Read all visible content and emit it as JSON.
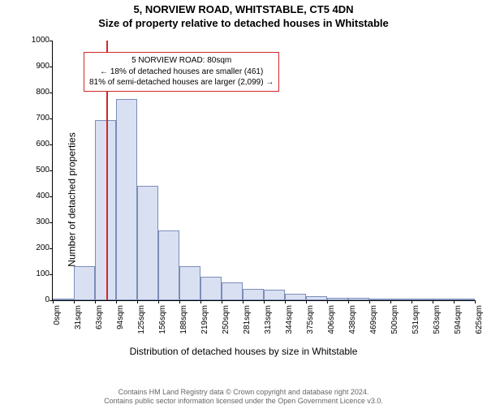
{
  "title_line1": "5, NORVIEW ROAD, WHITSTABLE, CT5 4DN",
  "title_line2": "Size of property relative to detached houses in Whitstable",
  "y_label": "Number of detached properties",
  "x_label": "Distribution of detached houses by size in Whitstable",
  "chart": {
    "type": "histogram",
    "ylim": [
      0,
      1000
    ],
    "ytick_step": 100,
    "y_ticks": [
      0,
      100,
      200,
      300,
      400,
      500,
      600,
      700,
      800,
      900,
      1000
    ],
    "x_ticks": [
      "0sqm",
      "31sqm",
      "63sqm",
      "94sqm",
      "125sqm",
      "156sqm",
      "188sqm",
      "219sqm",
      "250sqm",
      "281sqm",
      "313sqm",
      "344sqm",
      "375sqm",
      "406sqm",
      "438sqm",
      "469sqm",
      "500sqm",
      "531sqm",
      "563sqm",
      "594sqm",
      "625sqm"
    ],
    "values": [
      0,
      130,
      695,
      775,
      440,
      270,
      130,
      90,
      70,
      45,
      40,
      25,
      15,
      10,
      10,
      5,
      5,
      0,
      0,
      0,
      0
    ],
    "bar_fill": "#d9e0f2",
    "bar_stroke": "#7b8db8",
    "background_color": "#ffffff",
    "axis_color": "#000000",
    "marker_x_index": 2.55,
    "marker_color": "#d02828"
  },
  "annotation": {
    "line1": "5 NORVIEW ROAD: 80sqm",
    "line2": "← 18% of detached houses are smaller (461)",
    "line3": "81% of semi-detached houses are larger (2,099) →",
    "border_color": "#d02828"
  },
  "footer_line1": "Contains HM Land Registry data © Crown copyright and database right 2024.",
  "footer_line2": "Contains public sector information licensed under the Open Government Licence v3.0."
}
